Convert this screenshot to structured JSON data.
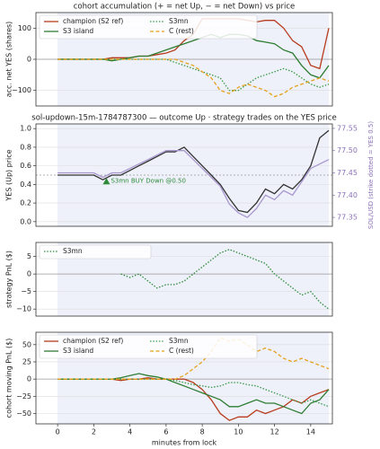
{
  "chart_data": [
    {
      "type": "line",
      "title": "cohort accumulation (+ = net Up, − = net Down) vs price",
      "ylabel": "acc. net YES (shares)",
      "x": [
        0,
        0.5,
        1,
        1.5,
        2,
        2.5,
        3,
        3.5,
        4,
        4.5,
        5,
        5.5,
        6,
        6.5,
        7,
        7.5,
        8,
        8.5,
        9,
        9.5,
        10,
        10.5,
        11,
        11.5,
        12,
        12.5,
        13,
        13.5,
        14,
        14.5,
        15
      ],
      "xlim": [
        -1.2,
        15.2
      ],
      "ylim": [
        -150,
        150
      ],
      "yticks": [
        {
          "value": -100,
          "label": "−100"
        },
        0,
        100
      ],
      "grid": true,
      "refline": 0,
      "legend": "upper left",
      "series": [
        {
          "name": "champion (S2 ref)",
          "color": "#b83c1e",
          "dash": "solid",
          "values": [
            0,
            0,
            0,
            0,
            0,
            0,
            5,
            5,
            5,
            10,
            10,
            15,
            20,
            30,
            60,
            80,
            130,
            130,
            130,
            130,
            130,
            125,
            120,
            125,
            125,
            100,
            60,
            40,
            -20,
            -30,
            100
          ]
        },
        {
          "name": "S3 island",
          "color": "#2e7d32",
          "dash": "solid",
          "values": [
            0,
            0,
            0,
            0,
            0,
            0,
            -5,
            0,
            5,
            10,
            10,
            20,
            30,
            40,
            50,
            60,
            70,
            80,
            70,
            80,
            80,
            75,
            60,
            55,
            50,
            30,
            20,
            -20,
            -50,
            -60,
            -20
          ]
        },
        {
          "name": "S3mn",
          "color": "#3a9a45",
          "dash": "dotted",
          "values": [
            0,
            0,
            0,
            0,
            0,
            0,
            0,
            0,
            0,
            0,
            0,
            0,
            0,
            -10,
            -20,
            -30,
            -40,
            -50,
            -60,
            -100,
            -100,
            -80,
            -60,
            -50,
            -40,
            -30,
            -40,
            -60,
            -80,
            -90,
            -80
          ]
        },
        {
          "name": "C (rest)",
          "color": "#e6a11a",
          "dash": "dashed",
          "values": [
            0,
            0,
            0,
            0,
            0,
            0,
            0,
            0,
            0,
            0,
            0,
            0,
            0,
            0,
            -10,
            -20,
            -40,
            -60,
            -100,
            -110,
            -90,
            -80,
            -90,
            -100,
            -120,
            -110,
            -90,
            -80,
            -70,
            -60,
            -70
          ]
        }
      ]
    },
    {
      "type": "line",
      "title": "sol-updown-15m-1784787300 — outcome Up · strategy trades on the YES price",
      "ylabel": "YES (Up) price",
      "y2label": "SOL/USD (strike dotted = YES 0.5)",
      "x": [
        0,
        0.5,
        1,
        1.5,
        2,
        2.5,
        3,
        3.5,
        4,
        4.5,
        5,
        5.5,
        6,
        6.5,
        7,
        7.5,
        8,
        8.5,
        9,
        9.5,
        10,
        10.5,
        11,
        11.5,
        12,
        12.5,
        13,
        13.5,
        14,
        14.5,
        15
      ],
      "xlim": [
        -1.2,
        15.2
      ],
      "ylim": [
        -0.05,
        1.05
      ],
      "yticks": [
        {
          "value": 0,
          "label": "0.0"
        },
        0.2,
        0.4,
        0.6,
        0.8,
        {
          "value": 1,
          "label": "1.0"
        }
      ],
      "y2lim": [
        77.33,
        77.56
      ],
      "y2ticks": [
        77.35,
        {
          "value": 77.4,
          "label": "77.40"
        },
        77.45,
        {
          "value": 77.5,
          "label": "77.50"
        },
        77.55
      ],
      "y2color": "#8a72b8",
      "grid": true,
      "refline": 0.5,
      "series": [
        {
          "color": "#333333",
          "dash": "solid",
          "values": [
            0.5,
            0.5,
            0.5,
            0.5,
            0.5,
            0.45,
            0.5,
            0.5,
            0.55,
            0.6,
            0.65,
            0.7,
            0.75,
            0.75,
            0.8,
            0.7,
            0.6,
            0.5,
            0.4,
            0.25,
            0.12,
            0.1,
            0.2,
            0.35,
            0.3,
            0.4,
            0.35,
            0.45,
            0.6,
            0.9,
            0.98
          ]
        },
        {
          "color": "#a898cf",
          "dash": "solid",
          "axis": "y2",
          "values": [
            77.45,
            77.45,
            77.45,
            77.45,
            77.45,
            77.44,
            77.45,
            77.45,
            77.46,
            77.47,
            77.48,
            77.49,
            77.5,
            77.5,
            77.5,
            77.48,
            77.46,
            77.44,
            77.42,
            77.38,
            77.36,
            77.35,
            77.37,
            77.4,
            77.39,
            77.41,
            77.4,
            77.43,
            77.46,
            77.47,
            77.48
          ]
        }
      ],
      "annotations": [
        {
          "text": "S3mn BUY Down @0.50",
          "x": 2.7,
          "y": 0.43,
          "color": "#2e8b3a"
        }
      ]
    },
    {
      "type": "line",
      "ylabel": "strategy PnL ($)",
      "x": [
        0,
        0.5,
        1,
        1.5,
        2,
        2.5,
        3,
        3.5,
        4,
        4.5,
        5,
        5.5,
        6,
        6.5,
        7,
        7.5,
        8,
        8.5,
        9,
        9.5,
        10,
        10.5,
        11,
        11.5,
        12,
        12.5,
        13,
        13.5,
        14,
        14.5,
        15
      ],
      "xlim": [
        -1.2,
        15.2
      ],
      "ylim": [
        -12,
        9
      ],
      "yticks": [
        {
          "value": -10,
          "label": "−10"
        },
        {
          "value": -5,
          "label": "−5"
        },
        0,
        5
      ],
      "grid": true,
      "refline": 0,
      "legend": "upper left",
      "series": [
        {
          "name": "S3mn",
          "color": "#2e8b3a",
          "dash": "dotted",
          "values": [
            null,
            null,
            null,
            null,
            null,
            null,
            null,
            0,
            -1,
            0,
            -2,
            -4,
            -3,
            -3,
            -2,
            0,
            2,
            4,
            6,
            7,
            6,
            5,
            4,
            3,
            0,
            -2,
            -4,
            -6,
            -5,
            -8,
            -10
          ]
        }
      ]
    },
    {
      "type": "line",
      "ylabel": "cohort moving PnL ($)",
      "xlabel": "minutes from lock",
      "x": [
        0,
        0.5,
        1,
        1.5,
        2,
        2.5,
        3,
        3.5,
        4,
        4.5,
        5,
        5.5,
        6,
        6.5,
        7,
        7.5,
        8,
        8.5,
        9,
        9.5,
        10,
        10.5,
        11,
        11.5,
        12,
        12.5,
        13,
        13.5,
        14,
        14.5,
        15
      ],
      "xlim": [
        -1.2,
        15.2
      ],
      "xticks": [
        0,
        2,
        4,
        6,
        8,
        10,
        12,
        14
      ],
      "ylim": [
        -65,
        68
      ],
      "yticks": [
        {
          "value": -50,
          "label": "−50"
        },
        {
          "value": -25,
          "label": "−25"
        },
        0,
        25,
        50
      ],
      "grid": true,
      "refline": 0,
      "legend": "upper left",
      "series": [
        {
          "name": "champion (S2 ref)",
          "color": "#b83c1e",
          "dash": "solid",
          "values": [
            0,
            0,
            0,
            0,
            0,
            0,
            0,
            -2,
            0,
            0,
            2,
            0,
            0,
            0,
            0,
            -5,
            -15,
            -30,
            -50,
            -60,
            -55,
            -55,
            -45,
            -50,
            -45,
            -40,
            -30,
            -35,
            -25,
            -20,
            -15
          ]
        },
        {
          "name": "S3 island",
          "color": "#2e7d32",
          "dash": "solid",
          "values": [
            0,
            0,
            0,
            0,
            0,
            0,
            0,
            2,
            5,
            8,
            5,
            3,
            0,
            -5,
            -10,
            -15,
            -20,
            -25,
            -30,
            -40,
            -40,
            -35,
            -30,
            -35,
            -35,
            -40,
            -45,
            -50,
            -35,
            -30,
            -15
          ]
        },
        {
          "name": "S3mn",
          "color": "#3a9a45",
          "dash": "dotted",
          "values": [
            0,
            0,
            0,
            0,
            0,
            0,
            0,
            0,
            0,
            0,
            0,
            0,
            0,
            -2,
            -5,
            -8,
            -10,
            -12,
            -10,
            -5,
            -5,
            -8,
            -10,
            -15,
            -20,
            -25,
            -30,
            -35,
            -30,
            -35,
            -40
          ]
        },
        {
          "name": "C (rest)",
          "color": "#e6a11a",
          "dash": "dashed",
          "values": [
            0,
            0,
            0,
            0,
            0,
            0,
            0,
            0,
            0,
            0,
            0,
            0,
            0,
            0,
            5,
            15,
            25,
            40,
            60,
            55,
            58,
            50,
            40,
            45,
            40,
            30,
            25,
            30,
            25,
            20,
            15
          ]
        }
      ]
    }
  ]
}
